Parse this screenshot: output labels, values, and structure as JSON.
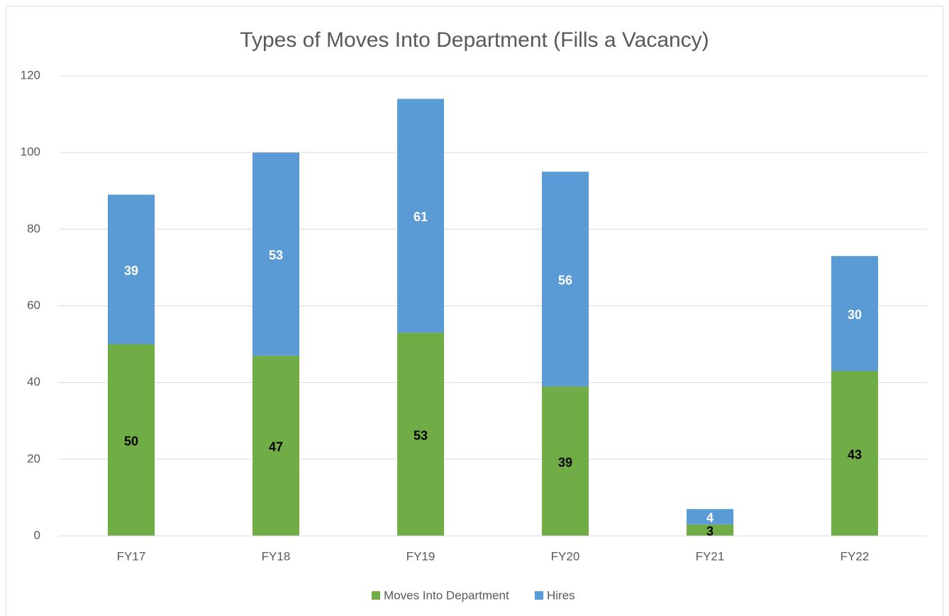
{
  "chart_data": {
    "type": "bar",
    "stacked": true,
    "title": "Types of Moves Into Department (Fills a Vacancy)",
    "categories": [
      "FY17",
      "FY18",
      "FY19",
      "FY20",
      "FY21",
      "FY22"
    ],
    "series": [
      {
        "name": "Moves Into Department",
        "color": "#70ad47",
        "label_color": "#000000",
        "values": [
          50,
          47,
          53,
          39,
          3,
          43
        ]
      },
      {
        "name": "Hires",
        "color": "#5b9bd5",
        "label_color": "#ffffff",
        "values": [
          39,
          53,
          61,
          56,
          4,
          30
        ]
      }
    ],
    "ylim": [
      0,
      120
    ],
    "yticks": [
      0,
      20,
      40,
      60,
      80,
      100,
      120
    ],
    "grid": true,
    "legend": "bottom"
  }
}
